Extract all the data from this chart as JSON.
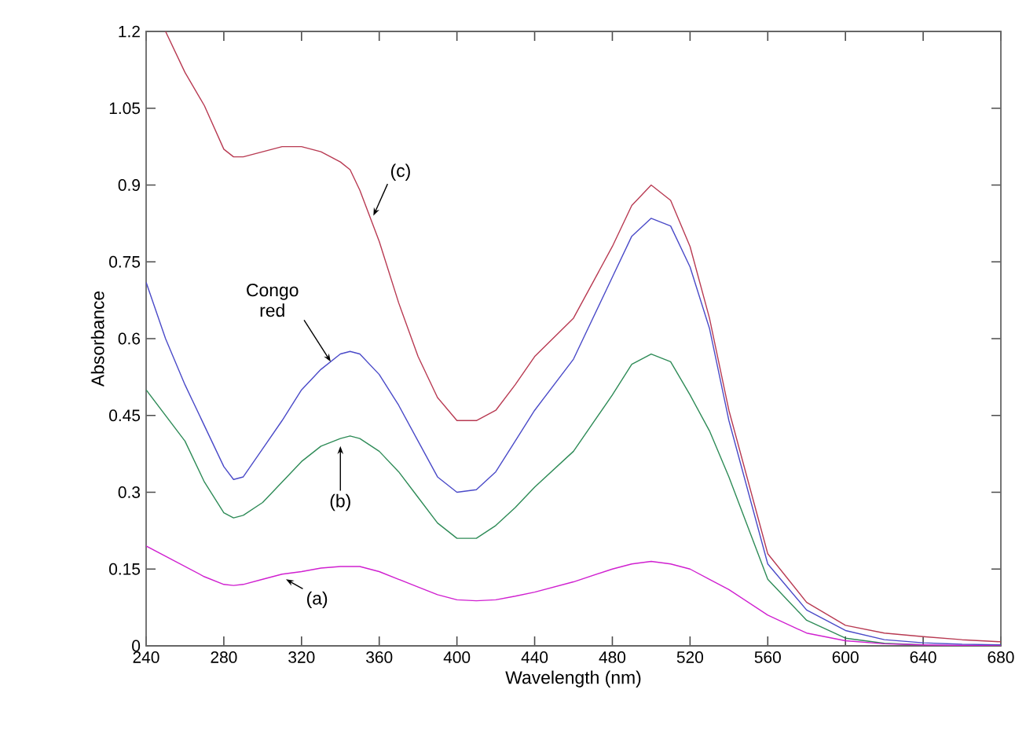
{
  "chart_data": {
    "type": "line",
    "xlabel": "Wavelength (nm)",
    "ylabel": "Absorbance",
    "x": [
      240,
      250,
      260,
      270,
      280,
      285,
      290,
      300,
      310,
      320,
      330,
      340,
      345,
      350,
      360,
      370,
      380,
      390,
      400,
      410,
      420,
      430,
      440,
      460,
      480,
      490,
      500,
      510,
      520,
      530,
      540,
      560,
      580,
      600,
      620,
      640,
      660,
      680
    ],
    "series": [
      {
        "color": "#b83a52",
        "values": [
          null,
          1.2,
          1.12,
          1.055,
          0.97,
          0.955,
          0.955,
          0.965,
          0.975,
          0.975,
          0.965,
          0.945,
          0.93,
          0.89,
          0.79,
          0.67,
          0.565,
          0.485,
          0.44,
          0.44,
          0.46,
          0.51,
          0.565,
          0.64,
          0.78,
          0.86,
          0.9,
          0.87,
          0.78,
          0.64,
          0.46,
          0.18,
          0.085,
          0.04,
          0.025,
          0.018,
          0.012,
          0.008
        ]
      },
      {
        "color": "#4a4ac8",
        "values": [
          0.71,
          0.6,
          0.51,
          0.43,
          0.35,
          0.325,
          0.33,
          0.385,
          0.44,
          0.5,
          0.54,
          0.57,
          0.575,
          0.57,
          0.53,
          0.47,
          0.4,
          0.33,
          0.3,
          0.305,
          0.34,
          0.4,
          0.46,
          0.56,
          0.72,
          0.8,
          0.835,
          0.82,
          0.74,
          0.62,
          0.44,
          0.16,
          0.07,
          0.03,
          0.012,
          0.006,
          0.003,
          0.002
        ]
      },
      {
        "color": "#2e8b57",
        "values": [
          0.5,
          0.45,
          0.4,
          0.32,
          0.26,
          0.25,
          0.255,
          0.28,
          0.32,
          0.36,
          0.39,
          0.405,
          0.41,
          0.405,
          0.38,
          0.34,
          0.29,
          0.24,
          0.21,
          0.21,
          0.235,
          0.27,
          0.31,
          0.38,
          0.49,
          0.55,
          0.57,
          0.555,
          0.49,
          0.42,
          0.33,
          0.13,
          0.05,
          0.015,
          0.005,
          0.002,
          null,
          null
        ]
      },
      {
        "color": "#d020d0",
        "values": [
          0.195,
          0.175,
          0.155,
          0.135,
          0.12,
          0.118,
          0.12,
          0.13,
          0.14,
          0.145,
          0.152,
          0.155,
          0.155,
          0.155,
          0.145,
          0.13,
          0.115,
          0.1,
          0.09,
          0.088,
          0.09,
          0.097,
          0.105,
          0.125,
          0.15,
          0.16,
          0.165,
          0.16,
          0.15,
          0.13,
          0.11,
          0.06,
          0.025,
          0.01,
          0.004,
          0.002,
          0.001,
          0
        ]
      }
    ],
    "xlim": [
      240,
      680
    ],
    "ylim": [
      0,
      1.2
    ],
    "xticks": [
      240,
      280,
      320,
      360,
      400,
      440,
      480,
      520,
      560,
      600,
      640,
      680
    ],
    "yticks": [
      0,
      0.15,
      0.3,
      0.45,
      0.6,
      0.75,
      0.9,
      1.05,
      1.2
    ],
    "grid": false,
    "marker": "none",
    "line_style": "solid",
    "annotations": [
      {
        "text": "(c)",
        "x": 357,
        "y": 0.84
      },
      {
        "text": "Congo red",
        "x": 335,
        "y": 0.555
      },
      {
        "text": "(b)",
        "x": 340,
        "y": 0.39
      },
      {
        "text": "(a)",
        "x": 312,
        "y": 0.13
      }
    ]
  }
}
